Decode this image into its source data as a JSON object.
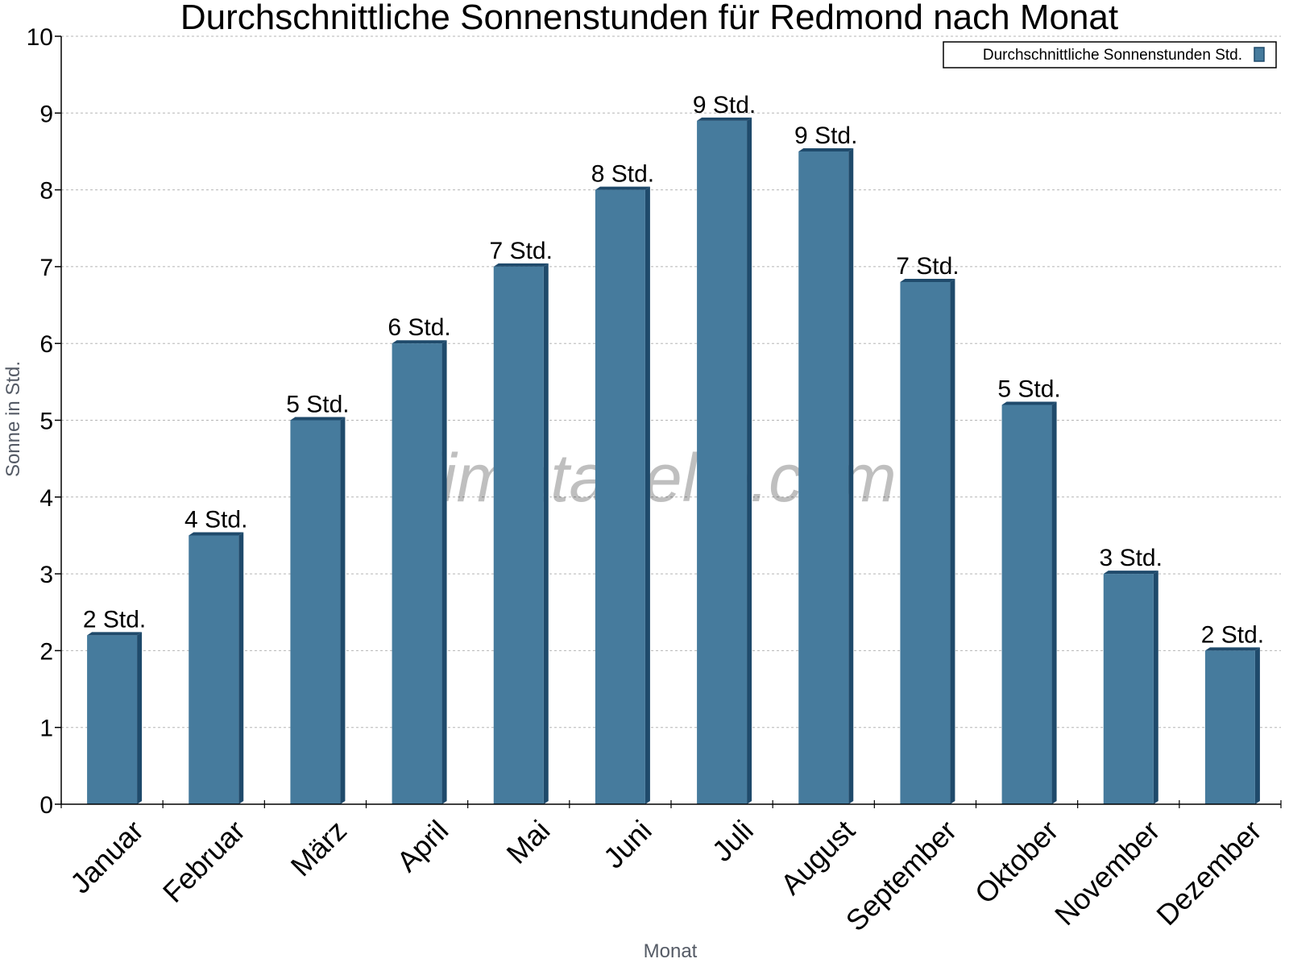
{
  "watermark": "klimatabelle.com",
  "colors": {
    "bar_front": "#467b9d",
    "bar_side": "#1f4a6b",
    "bar_top": "#1f4a6b",
    "grid": "#b5b5b5",
    "axis": "#000000"
  },
  "chart_data": {
    "type": "bar",
    "title": "Durchschnittliche Sonnenstunden für Redmond nach Monat",
    "xlabel": "Monat",
    "ylabel": "Sonne in Std.",
    "ylim": [
      0,
      10
    ],
    "yticks": [
      0,
      1,
      2,
      3,
      4,
      5,
      6,
      7,
      8,
      9,
      10
    ],
    "grid": true,
    "legend_position": "top-right",
    "categories": [
      "Januar",
      "Februar",
      "März",
      "April",
      "Mai",
      "Juni",
      "Juli",
      "August",
      "September",
      "Oktober",
      "November",
      "Dezember"
    ],
    "series": [
      {
        "name": "Durchschnittliche Sonnenstunden Std.",
        "values": [
          2.2,
          3.5,
          5.0,
          6.0,
          7.0,
          8.0,
          8.9,
          8.5,
          6.8,
          5.2,
          3.0,
          2.0
        ],
        "data_labels": [
          "2 Std.",
          "4 Std.",
          "5 Std.",
          "6 Std.",
          "7 Std.",
          "8 Std.",
          "9 Std.",
          "9 Std.",
          "7 Std.",
          "5 Std.",
          "3 Std.",
          "2 Std."
        ]
      }
    ]
  }
}
